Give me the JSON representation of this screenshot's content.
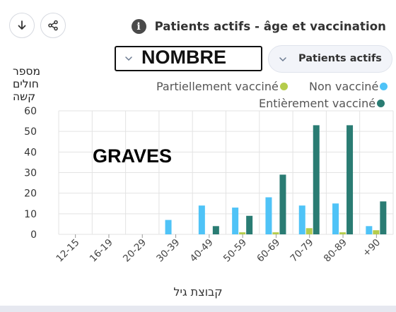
{
  "header": {
    "title": "Patients actifs - âge et vaccination",
    "info_icon": "info-icon",
    "download_icon": "download-arrow-icon",
    "share_icon": "share-icon"
  },
  "controls": {
    "metric_select": {
      "value": "NOMBRE",
      "icon": "chevron-down-icon"
    },
    "patients_select": {
      "label": "Patients actifs",
      "icon": "chevron-down-icon"
    }
  },
  "annotation": "GRAVES",
  "colors": {
    "partial": "#b5cc4c",
    "none": "#4fc3f7",
    "full": "#2a7c73",
    "grid": "#e3e3e3",
    "text": "#555555"
  },
  "chart_data": {
    "type": "bar",
    "ylabel_lines": [
      "מספר",
      "חולים",
      "קשה"
    ],
    "xlabel": "קבוצת גיל",
    "ylim": [
      0,
      60
    ],
    "yticks": [
      0,
      10,
      20,
      30,
      40,
      50,
      60
    ],
    "grid": true,
    "legend_position": "top-right",
    "categories": [
      "12-15",
      "16-19",
      "20-29",
      "30-39",
      "40-49",
      "50-59",
      "60-69",
      "70-79",
      "80-89",
      "+90"
    ],
    "series": [
      {
        "name": "Non vacciné",
        "color": "#4fc3f7",
        "values": [
          0,
          0,
          0,
          7,
          14,
          13,
          18,
          14,
          15,
          4
        ]
      },
      {
        "name": "Partiellement vacciné",
        "color": "#b5cc4c",
        "values": [
          0,
          0,
          0,
          0,
          0,
          1,
          1,
          3,
          1,
          2
        ]
      },
      {
        "name": "Entièrement vacciné",
        "color": "#2a7c73",
        "values": [
          0,
          0,
          0,
          0,
          4,
          9,
          29,
          53,
          53,
          16
        ]
      }
    ]
  }
}
